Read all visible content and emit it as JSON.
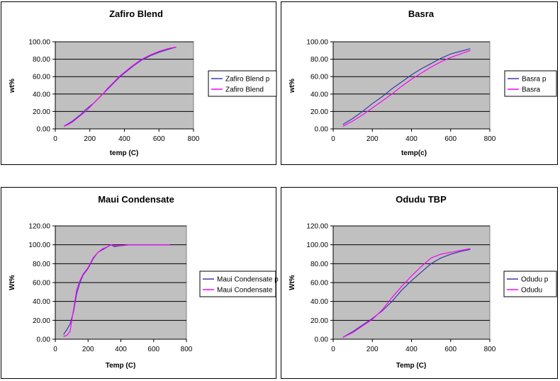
{
  "colors": {
    "plot_bg": "#c0c0c0",
    "series_p": "#3a3aa8",
    "series_measured": "#ff00ff",
    "grid": "#000000"
  },
  "chart_data": [
    {
      "type": "line",
      "title": "Zafiro Blend",
      "xlabel": "temp (C)",
      "ylabel": "wt%",
      "xlim": [
        0,
        800
      ],
      "ylim": [
        0,
        100
      ],
      "xticks": [
        "0",
        "200",
        "400",
        "600",
        "800"
      ],
      "yticks": [
        "0.00",
        "20.00",
        "40.00",
        "60.00",
        "80.00",
        "100.00"
      ],
      "grid": "horizontal",
      "legend": "right",
      "series": [
        {
          "name": "Zafiro Blend p",
          "x": [
            50,
            75,
            100,
            125,
            150,
            175,
            200,
            225,
            250,
            275,
            300,
            325,
            350,
            375,
            400,
            450,
            500,
            550,
            600,
            650,
            700
          ],
          "y": [
            3,
            6,
            9,
            13,
            17,
            22,
            26,
            30,
            35,
            40,
            45,
            50,
            55,
            60,
            64,
            72,
            79,
            84,
            88,
            91,
            94
          ]
        },
        {
          "name": "Zafiro Blend",
          "x": [
            50,
            75,
            100,
            125,
            150,
            175,
            200,
            225,
            250,
            275,
            300,
            325,
            350,
            375,
            400,
            450,
            500,
            550,
            600,
            650,
            700
          ],
          "y": [
            3,
            5,
            8,
            12,
            16,
            20,
            25,
            30,
            35,
            40,
            46,
            51,
            56,
            61,
            65,
            73,
            80,
            85,
            89,
            92,
            94
          ]
        }
      ]
    },
    {
      "type": "line",
      "title": "Basra",
      "xlabel": "temp(c)",
      "ylabel": "wt%",
      "xlim": [
        0,
        800
      ],
      "ylim": [
        0,
        100
      ],
      "xticks": [
        "0",
        "200",
        "400",
        "600",
        "800"
      ],
      "yticks": [
        "0.00",
        "20.00",
        "40.00",
        "60.00",
        "80.00",
        "100.00"
      ],
      "grid": "horizontal",
      "legend": "right",
      "series": [
        {
          "name": "Basra p",
          "x": [
            50,
            100,
            150,
            200,
            250,
            300,
            350,
            400,
            450,
            500,
            550,
            600,
            650,
            700
          ],
          "y": [
            5,
            12,
            20,
            29,
            37,
            46,
            54,
            62,
            69,
            75,
            81,
            86,
            89,
            92
          ]
        },
        {
          "name": "Basra",
          "x": [
            50,
            100,
            150,
            200,
            250,
            300,
            350,
            400,
            450,
            500,
            550,
            600,
            650,
            700
          ],
          "y": [
            3,
            9,
            16,
            24,
            32,
            40,
            49,
            57,
            64,
            71,
            77,
            82,
            86,
            90
          ]
        }
      ]
    },
    {
      "type": "line",
      "title": "Maui Condensate",
      "xlabel": "Temp (C)",
      "ylabel": "Wt%",
      "xlim": [
        0,
        800
      ],
      "ylim": [
        0,
        120
      ],
      "xticks": [
        "0",
        "200",
        "400",
        "600",
        "800"
      ],
      "yticks": [
        "0.00",
        "20.00",
        "40.00",
        "60.00",
        "80.00",
        "100.00",
        "120.00"
      ],
      "grid": "horizontal",
      "legend": "right",
      "series": [
        {
          "name": "Maui Condensate p",
          "x": [
            50,
            70,
            90,
            110,
            130,
            150,
            170,
            200,
            230,
            260,
            290,
            320,
            340,
            360,
            400,
            450,
            500,
            600,
            700
          ],
          "y": [
            5,
            10,
            16,
            28,
            48,
            60,
            68,
            75,
            85,
            92,
            95,
            98,
            100,
            98,
            99,
            100,
            100,
            100,
            100
          ]
        },
        {
          "name": "Maui Condensate",
          "x": [
            50,
            70,
            90,
            110,
            130,
            150,
            170,
            200,
            230,
            260,
            290,
            320,
            340,
            360,
            400,
            450,
            500,
            600,
            700
          ],
          "y": [
            3,
            4,
            8,
            30,
            52,
            62,
            69,
            76,
            86,
            92,
            96,
            98,
            100,
            99,
            99,
            100,
            100,
            100,
            100
          ]
        }
      ]
    },
    {
      "type": "line",
      "title": "Odudu TBP",
      "xlabel": "Temp (C)",
      "ylabel": "Wt%",
      "xlim": [
        0,
        800
      ],
      "ylim": [
        0,
        120
      ],
      "xticks": [
        "0",
        "200",
        "400",
        "600",
        "800"
      ],
      "yticks": [
        "0.00",
        "20.00",
        "40.00",
        "60.00",
        "80.00",
        "100.00",
        "120.00"
      ],
      "grid": "horizontal",
      "legend": "right",
      "series": [
        {
          "name": "Odudu p",
          "x": [
            50,
            100,
            150,
            200,
            250,
            300,
            350,
            400,
            450,
            500,
            550,
            600,
            650,
            700
          ],
          "y": [
            2,
            8,
            15,
            22,
            30,
            40,
            52,
            62,
            71,
            80,
            86,
            90,
            93,
            95
          ]
        },
        {
          "name": "Odudu",
          "x": [
            50,
            100,
            150,
            200,
            250,
            300,
            350,
            400,
            450,
            500,
            550,
            600,
            650,
            700
          ],
          "y": [
            2,
            7,
            14,
            21,
            31,
            44,
            56,
            67,
            77,
            86,
            90,
            92,
            94,
            96
          ]
        }
      ]
    }
  ]
}
